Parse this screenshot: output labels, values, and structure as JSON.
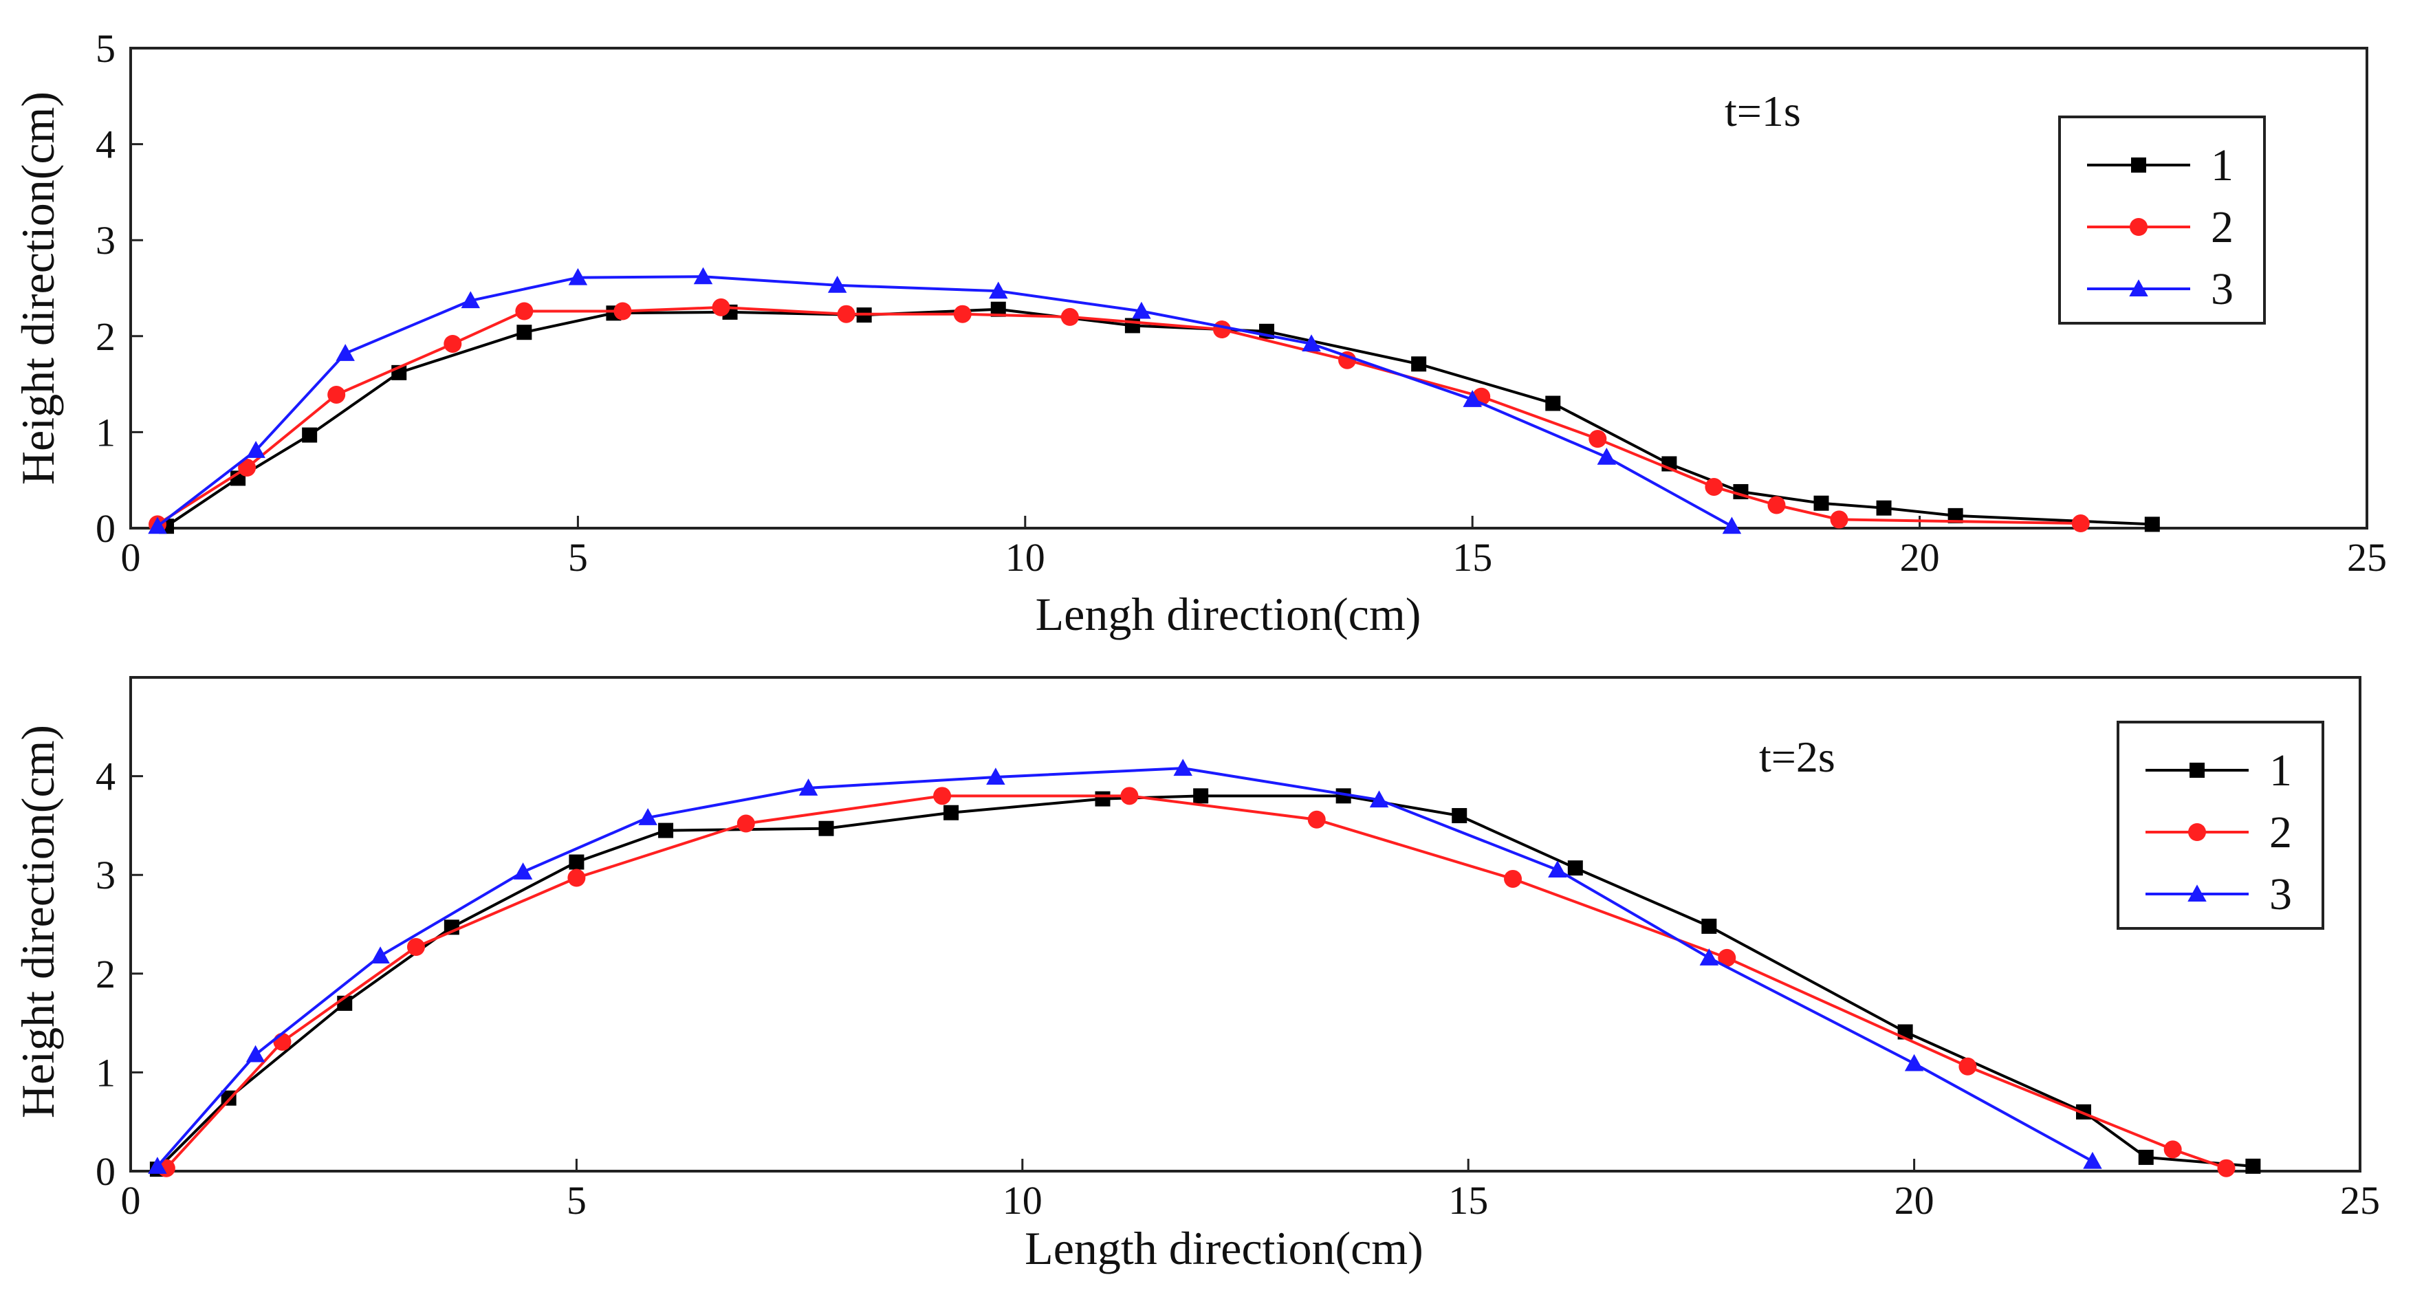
{
  "chart_data": [
    {
      "type": "line",
      "annotation": "t=1s",
      "xlabel": "Lengh direction(cm)",
      "ylabel": "Height direction(cm)",
      "xlim": [
        0,
        25
      ],
      "ylim": [
        0,
        5
      ],
      "xticks": [
        0,
        5,
        10,
        15,
        20,
        25
      ],
      "yticks": [
        0,
        1,
        2,
        3,
        4,
        5
      ],
      "xtick_labels": [
        "0",
        "5",
        "10",
        "15",
        "20",
        "25"
      ],
      "ytick_labels": [
        "0",
        "1",
        "2",
        "3",
        "4",
        "5"
      ],
      "grid": false,
      "legend_position": "top-right",
      "series": [
        {
          "name": "1",
          "color": "#000000",
          "marker": "square",
          "x": [
            0.4,
            1.2,
            2.0,
            3.0,
            4.4,
            5.4,
            6.7,
            8.2,
            9.7,
            11.2,
            12.7,
            14.4,
            15.9,
            17.2,
            18.0,
            18.9,
            19.6,
            20.4,
            22.6
          ],
          "y": [
            0.02,
            0.52,
            0.97,
            1.62,
            2.04,
            2.24,
            2.25,
            2.22,
            2.28,
            2.11,
            2.05,
            1.71,
            1.3,
            0.67,
            0.38,
            0.26,
            0.21,
            0.13,
            0.04
          ]
        },
        {
          "name": "2",
          "color": "#ff2020",
          "marker": "circle",
          "x": [
            0.3,
            1.3,
            2.3,
            3.6,
            4.4,
            5.5,
            6.6,
            8.0,
            9.3,
            10.5,
            12.2,
            13.6,
            15.1,
            16.4,
            17.7,
            18.4,
            19.1,
            21.8
          ],
          "y": [
            0.04,
            0.63,
            1.39,
            1.92,
            2.26,
            2.26,
            2.3,
            2.23,
            2.23,
            2.2,
            2.07,
            1.75,
            1.37,
            0.93,
            0.43,
            0.24,
            0.09,
            0.05
          ]
        },
        {
          "name": "3",
          "color": "#1a1aff",
          "marker": "triangle",
          "x": [
            0.3,
            1.4,
            2.4,
            3.8,
            5.0,
            6.4,
            7.9,
            9.7,
            11.3,
            13.2,
            15.0,
            16.5,
            17.9
          ],
          "y": [
            0.02,
            0.81,
            1.82,
            2.37,
            2.61,
            2.62,
            2.53,
            2.47,
            2.26,
            1.92,
            1.34,
            0.74,
            0.02
          ]
        }
      ]
    },
    {
      "type": "line",
      "annotation": "t=2s",
      "xlabel": "Length direction(cm)",
      "ylabel": "Height direction(cm)",
      "xlim": [
        0,
        25
      ],
      "ylim": [
        0,
        5
      ],
      "xticks": [
        0,
        5,
        10,
        15,
        20,
        25
      ],
      "yticks": [
        0,
        1,
        2,
        3,
        4
      ],
      "xtick_labels": [
        "0",
        "5",
        "10",
        "15",
        "20",
        "25"
      ],
      "ytick_labels": [
        "0",
        "1",
        "2",
        "3",
        "4"
      ],
      "grid": false,
      "legend_position": "top-right",
      "series": [
        {
          "name": "1",
          "color": "#000000",
          "marker": "square",
          "x": [
            0.3,
            1.1,
            2.4,
            3.6,
            5.0,
            6.0,
            7.8,
            9.2,
            10.9,
            12.0,
            13.6,
            14.9,
            16.2,
            17.7,
            19.9,
            21.9,
            22.6,
            23.8
          ],
          "y": [
            0.02,
            0.74,
            1.7,
            2.47,
            3.13,
            3.45,
            3.47,
            3.63,
            3.77,
            3.8,
            3.8,
            3.6,
            3.07,
            2.48,
            1.41,
            0.6,
            0.14,
            0.05
          ]
        },
        {
          "name": "2",
          "color": "#ff2020",
          "marker": "circle",
          "x": [
            0.4,
            1.7,
            3.2,
            5.0,
            6.9,
            9.1,
            11.2,
            13.3,
            15.5,
            17.9,
            20.6,
            22.9,
            23.5
          ],
          "y": [
            0.03,
            1.31,
            2.27,
            2.97,
            3.52,
            3.8,
            3.8,
            3.56,
            2.96,
            2.16,
            1.06,
            0.22,
            0.03
          ]
        },
        {
          "name": "3",
          "color": "#1a1aff",
          "marker": "triangle",
          "x": [
            0.3,
            1.4,
            2.8,
            4.4,
            5.8,
            7.6,
            9.7,
            11.8,
            14.0,
            16.0,
            17.7,
            20.0,
            22.0
          ],
          "y": [
            0.05,
            1.18,
            2.18,
            3.03,
            3.58,
            3.88,
            3.99,
            4.08,
            3.76,
            3.05,
            2.16,
            1.09,
            0.1
          ]
        }
      ]
    }
  ]
}
